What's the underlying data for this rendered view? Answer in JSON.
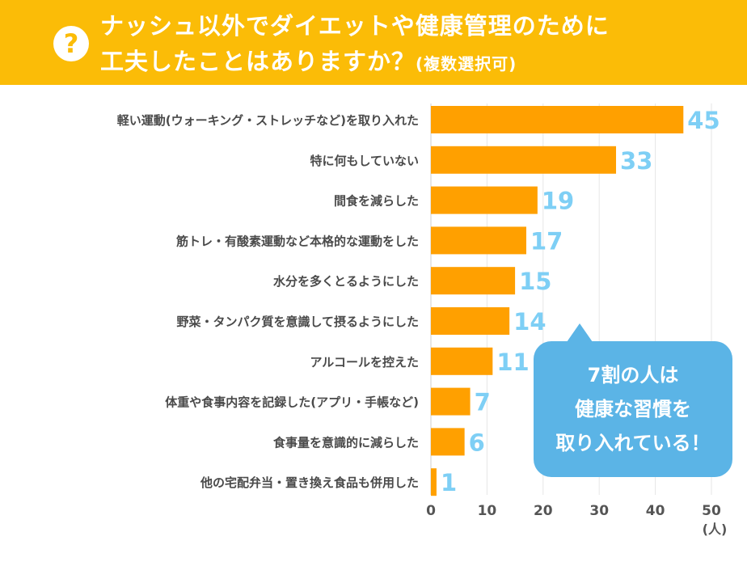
{
  "header": {
    "line1": "ナッシュ以外でダイエットや健康管理のために",
    "line2": "工夫したことはありますか？",
    "line2_sub": "(複数選択可)",
    "icon": "question-circle-icon"
  },
  "callout": {
    "lines": [
      "7割の人は",
      "健康な習慣を",
      "取り入れている！"
    ]
  },
  "colors": {
    "header": "#FBBC07",
    "bar": "#FFA000",
    "value_label": "#7ECFF5",
    "callout": "#5BB4E6",
    "label": "#4a4a4a"
  },
  "chart_data": {
    "type": "bar",
    "orientation": "horizontal",
    "categories": [
      "軽い運動(ウォーキング・ストレッチなど)を取り入れた",
      "特に何もしていない",
      "間食を減らした",
      "筋トレ・有酸素運動など本格的な運動をした",
      "水分を多くとるようにした",
      "野菜・タンパク質を意識して摂るようにした",
      "アルコールを控えた",
      "体重や食事内容を記録した(アプリ・手帳など)",
      "食事量を意識的に減らした",
      "他の宅配弁当・置き換え食品も併用した"
    ],
    "values": [
      45,
      33,
      19,
      17,
      15,
      14,
      11,
      7,
      6,
      1
    ],
    "xlim": [
      0,
      50
    ],
    "xticks": [
      "0",
      "10",
      "20",
      "30",
      "40",
      "50"
    ],
    "xunit": "(人)",
    "grid": true
  }
}
